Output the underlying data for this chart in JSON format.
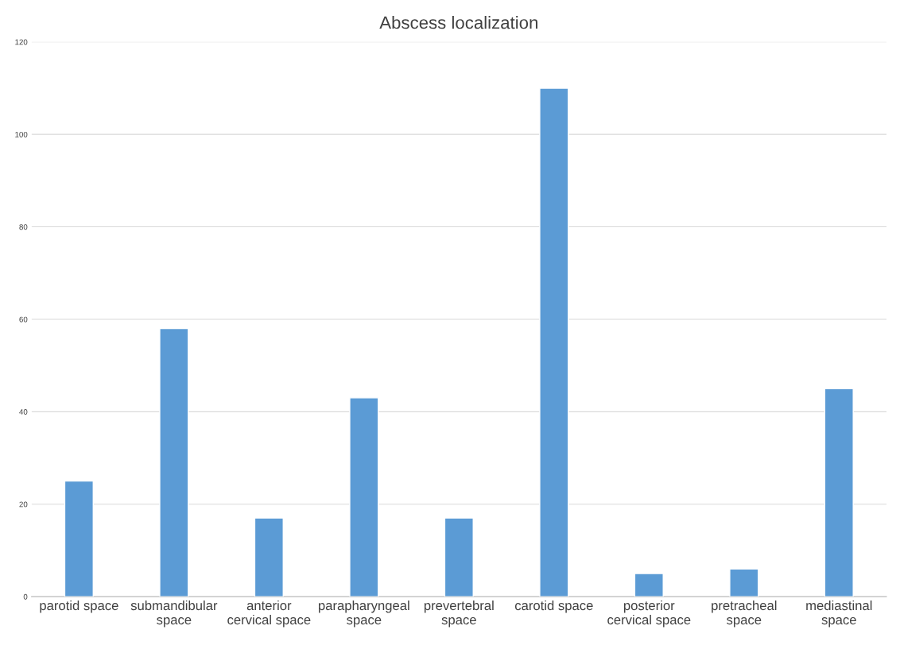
{
  "chart_data": {
    "type": "bar",
    "title": "Abscess localization",
    "categories": [
      "parotid space",
      "submandibular space",
      "anterior cervical space",
      "parapharyngeal space",
      "prevertebral space",
      "carotid space",
      "posterior cervical space",
      "pretracheal space",
      "mediastinal space"
    ],
    "values": [
      25,
      58,
      17,
      43,
      17,
      110,
      5,
      6,
      45
    ],
    "color": "#5b9bd5",
    "ylim": [
      0,
      120
    ],
    "yticks": [
      0,
      20,
      40,
      60,
      80,
      100,
      120
    ],
    "grid": "y"
  }
}
